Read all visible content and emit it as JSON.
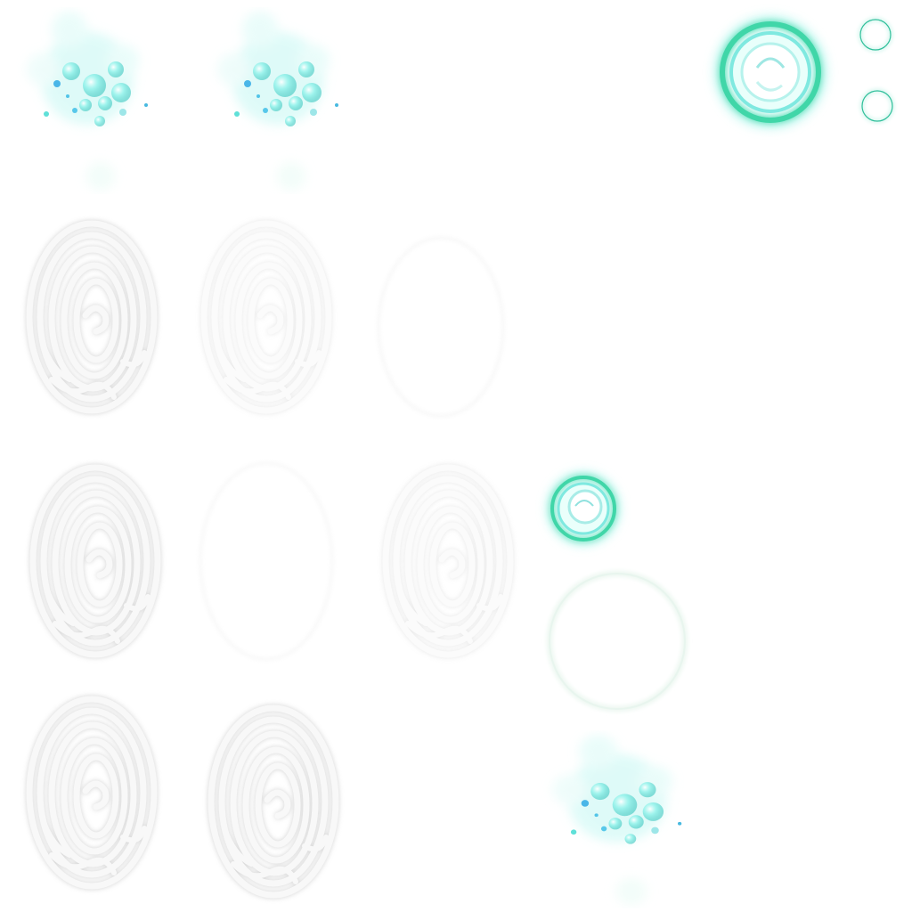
{
  "sheet": {
    "sprites": [
      {
        "name": "bubble-cluster",
        "kind": "particles"
      },
      {
        "name": "glow-ring",
        "kind": "ring"
      },
      {
        "name": "circle-outline",
        "kind": "outline"
      },
      {
        "name": "fingerprint",
        "kind": "fingerprint"
      },
      {
        "name": "faint-ring",
        "kind": "ring"
      }
    ]
  },
  "colors": {
    "background": "#ffffff",
    "teal": "#3fd6a8",
    "cyan_glow": "#7ff3e8",
    "bubble_blue": "#4ab6e8",
    "fingerprint_white": "#f7f7f7",
    "fingerprint_shadow": "#e2e2e2"
  }
}
